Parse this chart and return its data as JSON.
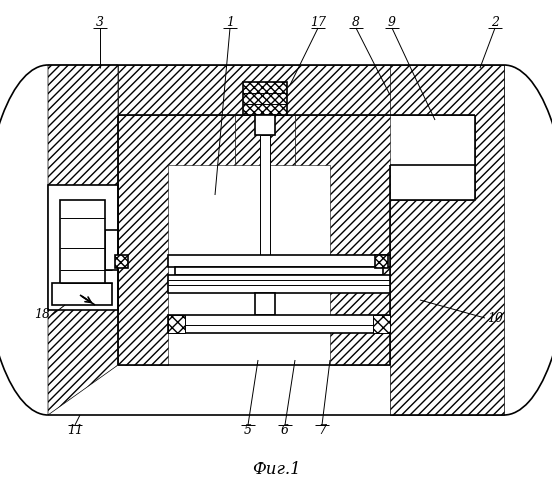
{
  "title": "Фиг.1",
  "bg_color": "#ffffff",
  "line_color": "#000000",
  "lw_main": 1.2,
  "lw_thin": 0.7,
  "hatch_density": "////",
  "cross_hatch": "xxxx"
}
